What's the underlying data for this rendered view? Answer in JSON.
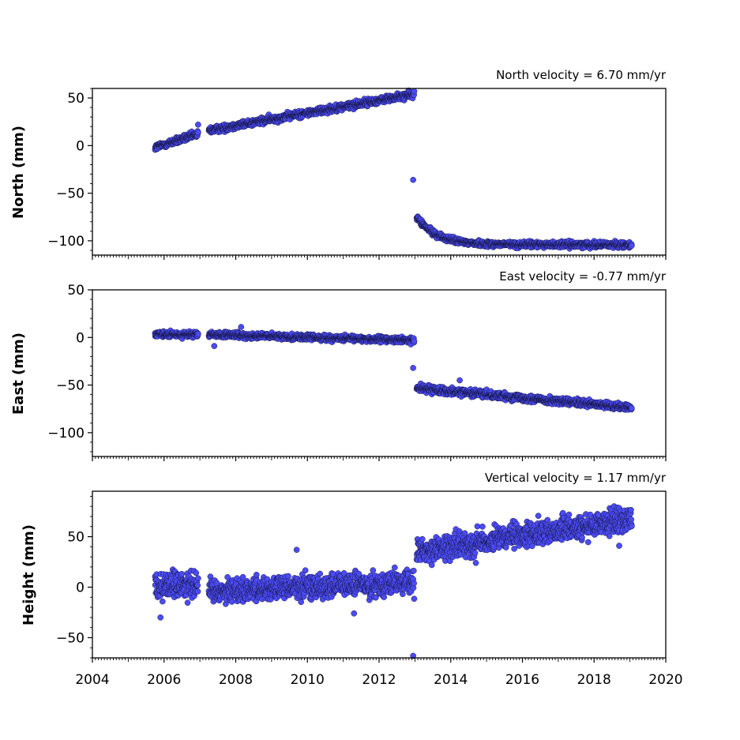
{
  "chart_data": [
    {
      "type": "scatter",
      "title": "North velocity = 6.70 mm/yr",
      "ylabel": "North (mm)",
      "xlim": [
        2004,
        2020
      ],
      "ylim": [
        -115,
        60
      ],
      "yticks": [
        50,
        0,
        -50,
        -100
      ],
      "color": "#4b4bf5",
      "series": [
        {
          "segments": [
            {
              "x_start": 2005.75,
              "x_end": 2006.95,
              "y_start": -2,
              "y_end": 12,
              "noise": 3
            },
            {
              "x_start": 2007.25,
              "x_end": 2012.98,
              "y_start": 16,
              "y_end": 54,
              "noise": 3
            },
            {
              "x_start": 2013.05,
              "x_end": 2019.05,
              "y_start": -75,
              "y_end": -104,
              "decay": 0.55,
              "noise": 2.5
            }
          ],
          "outliers": [
            [
              2012.95,
              -36
            ],
            [
              2006.95,
              22
            ]
          ]
        }
      ]
    },
    {
      "type": "scatter",
      "title": "East velocity = -0.77 mm/yr",
      "ylabel": "East (mm)",
      "xlim": [
        2004,
        2020
      ],
      "ylim": [
        -125,
        50
      ],
      "yticks": [
        50,
        0,
        -50,
        -100
      ],
      "color": "#4b4bf5",
      "series": [
        {
          "segments": [
            {
              "x_start": 2005.75,
              "x_end": 2006.95,
              "y_start": 3,
              "y_end": 3,
              "noise": 2.5
            },
            {
              "x_start": 2007.25,
              "x_end": 2012.98,
              "y_start": 3,
              "y_end": -3,
              "noise": 2.5
            },
            {
              "x_start": 2013.05,
              "x_end": 2019.05,
              "y_start": -53,
              "y_end": -74,
              "decay": 0.0,
              "noise": 3
            }
          ],
          "outliers": [
            [
              2012.95,
              -32
            ],
            [
              2014.25,
              -45
            ],
            [
              2008.15,
              11
            ],
            [
              2007.4,
              -9
            ]
          ]
        }
      ]
    },
    {
      "type": "scatter",
      "title": "Vertical velocity = 1.17 mm/yr",
      "ylabel": "Height (mm)",
      "xlim": [
        2004,
        2020
      ],
      "ylim": [
        -70,
        95
      ],
      "yticks": [
        50,
        0,
        -50
      ],
      "xticks": [
        2004,
        2006,
        2008,
        2010,
        2012,
        2014,
        2016,
        2018,
        2020
      ],
      "color": "#4b4bf5",
      "series": [
        {
          "segments": [
            {
              "x_start": 2005.75,
              "x_end": 2006.95,
              "y_start": 2,
              "y_end": 4,
              "noise": 12
            },
            {
              "x_start": 2007.25,
              "x_end": 2012.98,
              "y_start": -4,
              "y_end": 5,
              "noise": 10
            },
            {
              "x_start": 2013.05,
              "x_end": 2019.05,
              "y_start": 35,
              "y_end": 68,
              "decay": 0.0,
              "noise": 10
            }
          ],
          "outliers": [
            [
              2012.95,
              -68
            ],
            [
              2009.7,
              37
            ],
            [
              2011.3,
              -26
            ],
            [
              2018.7,
              41
            ],
            [
              2014.7,
              24
            ],
            [
              2005.9,
              -30
            ]
          ]
        }
      ]
    }
  ]
}
